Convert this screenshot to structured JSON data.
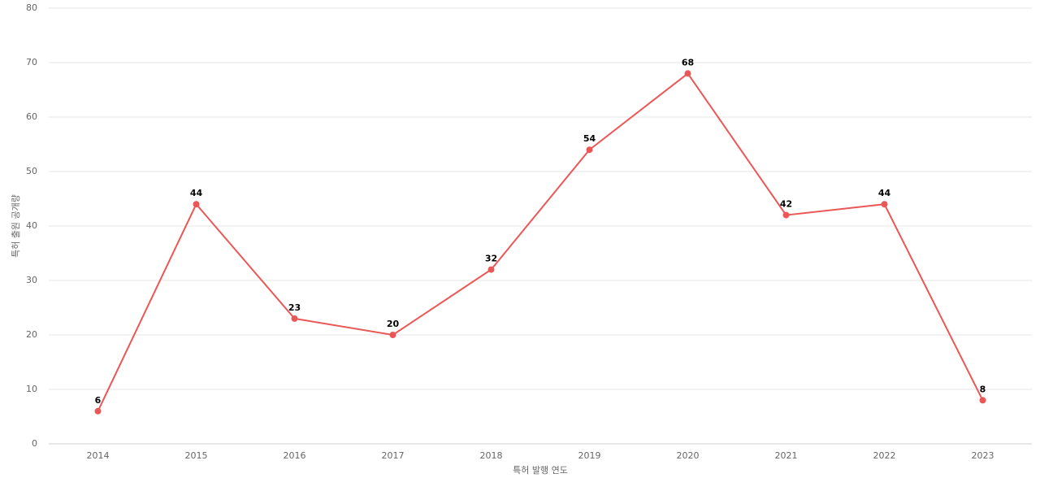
{
  "chart_data": {
    "type": "line",
    "x_label": "특허 발행 연도",
    "y_label": "특허 출원 공개량",
    "categories": [
      "2014",
      "2015",
      "2016",
      "2017",
      "2018",
      "2019",
      "2020",
      "2021",
      "2022",
      "2023"
    ],
    "values": [
      6,
      44,
      23,
      20,
      32,
      54,
      68,
      42,
      44,
      8
    ],
    "color": "#eb5757",
    "ylim": [
      0,
      80
    ],
    "yticks": [
      0,
      10,
      20,
      30,
      40,
      50,
      60,
      70,
      80
    ],
    "grid": true
  }
}
